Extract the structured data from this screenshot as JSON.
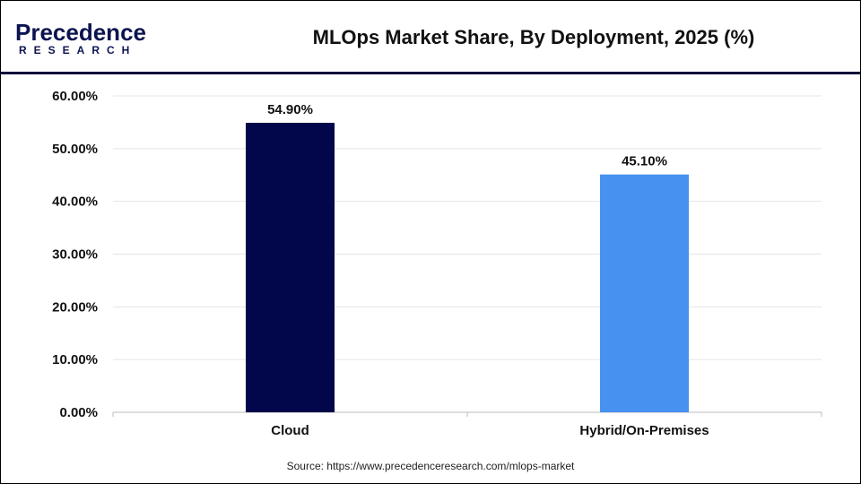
{
  "logo": {
    "line1": "Precedence",
    "line2": "RESEARCH"
  },
  "source": "Source: https://www.precedenceresearch.com/mlops-market",
  "chart_data": {
    "type": "bar",
    "title": "MLOps Market Share, By Deployment, 2025 (%)",
    "categories": [
      "Cloud",
      "Hybrid/On-Premises"
    ],
    "values": [
      54.9,
      45.1
    ],
    "data_labels": [
      "54.90%",
      "45.10%"
    ],
    "colors": [
      "#02064a",
      "#4791f0"
    ],
    "ylim": [
      0,
      60
    ],
    "yticks": [
      "0.00%",
      "10.00%",
      "20.00%",
      "30.00%",
      "40.00%",
      "50.00%",
      "60.00%"
    ],
    "grid": true,
    "xlabel": "",
    "ylabel": ""
  }
}
